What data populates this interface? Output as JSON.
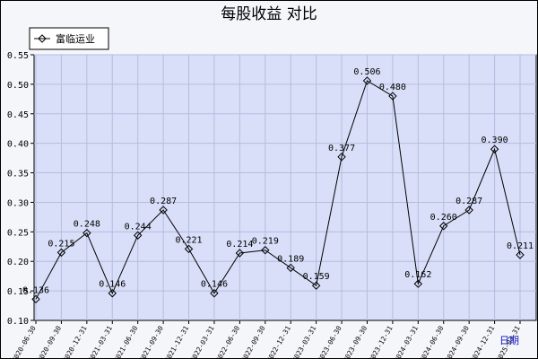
{
  "chart_data": {
    "type": "line",
    "title": "每股收益  对比",
    "xlabel": "日期",
    "ylabel": "",
    "ylim": [
      0.1,
      0.55
    ],
    "yticks": [
      0.1,
      0.15,
      0.2,
      0.25,
      0.3,
      0.35,
      0.4,
      0.45,
      0.5,
      0.55
    ],
    "ytick_labels": [
      "0.10",
      "0.15",
      "0.20",
      "0.25",
      "0.30",
      "0.35",
      "0.40",
      "0.45",
      "0.50",
      "0.55"
    ],
    "grid": true,
    "legend_position": "top-left",
    "categories": [
      "2020-06-30",
      "2020-09-30",
      "2020-12-31",
      "2021-03-31",
      "2021-06-30",
      "2021-09-30",
      "2021-12-31",
      "2022-03-31",
      "2022-06-30",
      "2022-09-30",
      "2022-12-31",
      "2023-03-31",
      "2023-06-30",
      "2023-09-30",
      "2023-12-31",
      "2024-03-31",
      "2024-06-30",
      "2024-09-30",
      "2024-12-31",
      "2025-03-31"
    ],
    "series": [
      {
        "name": "富临运业",
        "color": "#000000",
        "values": [
          0.136,
          0.215,
          0.248,
          0.146,
          0.244,
          0.287,
          0.221,
          0.146,
          0.214,
          0.219,
          0.189,
          0.159,
          0.377,
          0.506,
          0.48,
          0.162,
          0.26,
          0.287,
          0.39,
          0.211
        ],
        "labels": [
          "0.136",
          "0.215",
          "0.248",
          "0.146",
          "0.244",
          "0.287",
          "0.221",
          "0.146",
          "0.214",
          "0.219",
          "0.189",
          "0.159",
          "0.377",
          "0.506",
          "0.480",
          "0.162",
          "0.260",
          "0.287",
          "0.390",
          "0.211"
        ]
      }
    ],
    "colors": {
      "plot_background": "#d9dff8",
      "grid": "#b4bde0",
      "frame_background": "#f5f6fa",
      "xlabel": "#1010c0"
    }
  }
}
